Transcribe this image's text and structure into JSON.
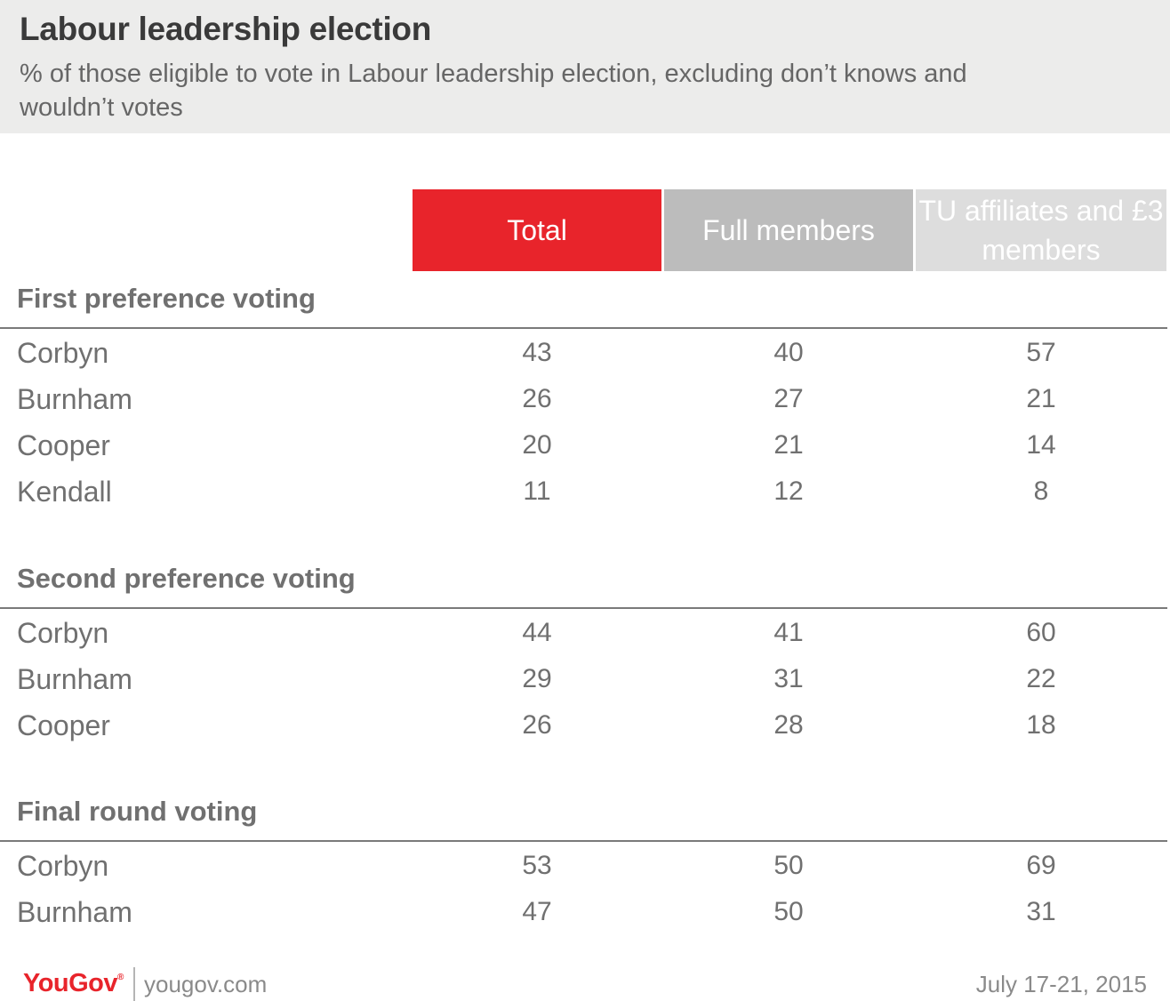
{
  "header": {
    "title": "Labour leadership election",
    "subtitle": "% of those eligible to vote in Labour leadership election, excluding don’t knows and wouldn’t votes"
  },
  "columns": [
    "Total",
    "Full members",
    "TU affiliates and £3 members"
  ],
  "colors": {
    "total": "#e8242b",
    "full_members": "#bcbcbc",
    "tu_affiliates": "#dddddd",
    "brand": "#e8242b"
  },
  "chart_data": {
    "type": "table",
    "title": "Labour leadership election",
    "subtitle": "% of those eligible to vote in Labour leadership election, excluding don’t knows and wouldn’t votes",
    "columns": [
      "Total",
      "Full members",
      "TU affiliates and £3 members"
    ],
    "sections": [
      {
        "title": "First preference voting",
        "rows": [
          {
            "label": "Corbyn",
            "values": [
              43,
              40,
              57
            ]
          },
          {
            "label": "Burnham",
            "values": [
              26,
              27,
              21
            ]
          },
          {
            "label": "Cooper",
            "values": [
              20,
              21,
              14
            ]
          },
          {
            "label": "Kendall",
            "values": [
              11,
              12,
              8
            ]
          }
        ]
      },
      {
        "title": "Second preference voting",
        "rows": [
          {
            "label": "Corbyn",
            "values": [
              44,
              41,
              60
            ]
          },
          {
            "label": "Burnham",
            "values": [
              29,
              31,
              22
            ]
          },
          {
            "label": "Cooper",
            "values": [
              26,
              28,
              18
            ]
          }
        ]
      },
      {
        "title": "Final round voting",
        "rows": [
          {
            "label": "Corbyn",
            "values": [
              53,
              50,
              69
            ]
          },
          {
            "label": "Burnham",
            "values": [
              47,
              50,
              31
            ]
          }
        ]
      }
    ]
  },
  "footer": {
    "brand": "YouGov",
    "brand_mark": "®",
    "url": "yougov.com",
    "date": "July 17-21, 2015"
  }
}
